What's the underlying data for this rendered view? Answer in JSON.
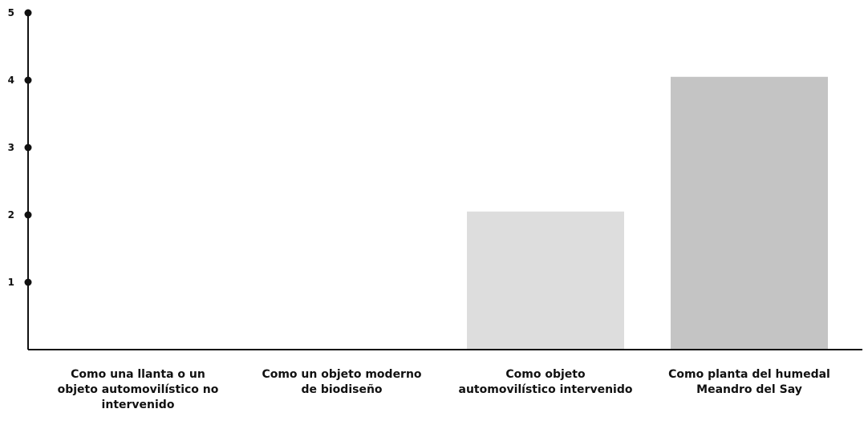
{
  "chart_data": {
    "type": "bar",
    "categories": [
      [
        "Como una llanta o un",
        "objeto automovilístico no",
        "intervenido"
      ],
      [
        "Como un objeto moderno",
        "de biodiseño"
      ],
      [
        "Como objeto",
        "automovilístico intervenido"
      ],
      [
        "Como planta del humedal",
        "Meandro del Say"
      ]
    ],
    "values": [
      0,
      0,
      2.05,
      4.05
    ],
    "bar_colors": [
      "#d9d9d9",
      "#d9d9d9",
      "#dddddd",
      "#c4c4c4"
    ],
    "yticks": [
      1,
      2,
      3,
      4,
      5
    ],
    "ylim": [
      0,
      5
    ],
    "axis_color": "#111111",
    "grid": false
  }
}
